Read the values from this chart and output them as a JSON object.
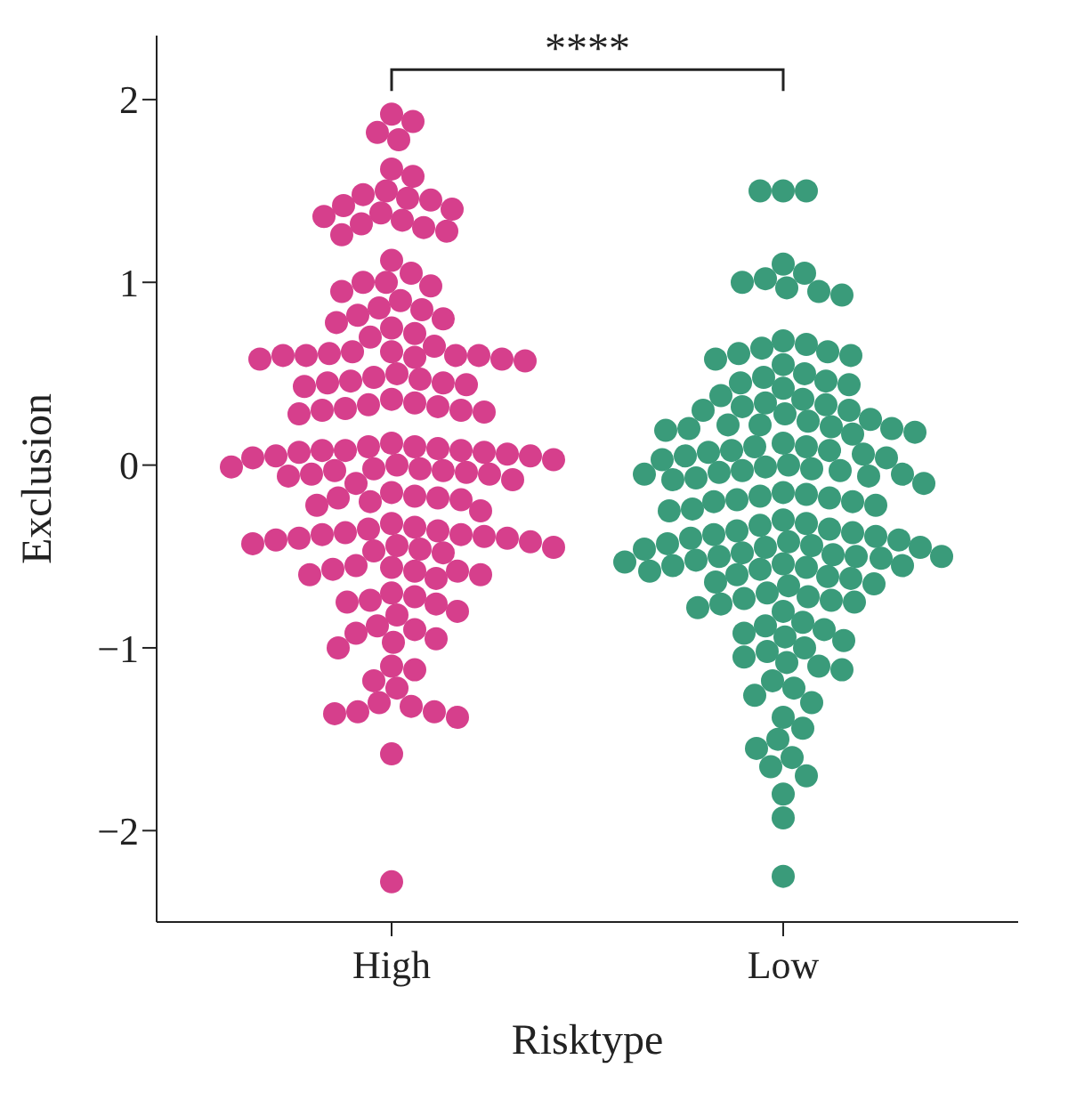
{
  "chart_data": {
    "type": "scatter",
    "xlabel": "Risktype",
    "ylabel": "Exclusion",
    "categories": [
      "High",
      "Low"
    ],
    "ylim": [
      -2.5,
      2.35
    ],
    "yticks": [
      -2,
      -1,
      0,
      1,
      2
    ],
    "grid": false,
    "legend": false,
    "marker": "circle",
    "annotations": [
      "****"
    ],
    "series": [
      {
        "color": "#d63f8c",
        "x": [
          "High",
          "High",
          "High",
          "High",
          "High",
          "High",
          "High",
          "High",
          "High",
          "High",
          "High",
          "High",
          "High",
          "High",
          "High",
          "High",
          "High",
          "High",
          "High",
          "High",
          "High",
          "High",
          "High",
          "High",
          "High",
          "High",
          "High",
          "High",
          "High",
          "High",
          "High",
          "High",
          "High",
          "High",
          "High",
          "High",
          "High",
          "High",
          "High",
          "High",
          "High",
          "High",
          "High",
          "High",
          "High",
          "High",
          "High",
          "High",
          "High",
          "High",
          "High",
          "High",
          "High",
          "High",
          "High",
          "High",
          "High",
          "High",
          "High",
          "High",
          "High",
          "High",
          "High",
          "High",
          "High",
          "High",
          "High",
          "High",
          "High",
          "High",
          "High",
          "High",
          "High",
          "High",
          "High",
          "High",
          "High",
          "High",
          "High",
          "High",
          "High",
          "High",
          "High",
          "High",
          "High",
          "High",
          "High",
          "High",
          "High",
          "High",
          "High",
          "High",
          "High",
          "High",
          "High",
          "High",
          "High",
          "High",
          "High",
          "High",
          "High",
          "High",
          "High",
          "High",
          "High",
          "High",
          "High",
          "High",
          "High",
          "High",
          "High",
          "High",
          "High",
          "High",
          "High",
          "High",
          "High",
          "High",
          "High",
          "High",
          "High",
          "High",
          "High",
          "High",
          "High",
          "High",
          "High",
          "High",
          "High",
          "High",
          "High",
          "High",
          "High",
          "High",
          "High",
          "High",
          "High",
          "High",
          "High",
          "High",
          "High",
          "High",
          "High",
          "High",
          "High",
          "High",
          "High",
          "High"
        ],
        "values": [
          1.92,
          1.88,
          1.82,
          1.78,
          1.62,
          1.58,
          1.5,
          1.48,
          1.46,
          1.45,
          1.42,
          1.4,
          1.38,
          1.36,
          1.34,
          1.32,
          1.3,
          1.28,
          1.26,
          1.12,
          1.05,
          1.0,
          1.0,
          0.98,
          0.95,
          0.9,
          0.86,
          0.85,
          0.82,
          0.8,
          0.78,
          0.75,
          0.72,
          0.7,
          0.65,
          0.62,
          0.62,
          0.61,
          0.6,
          0.6,
          0.6,
          0.6,
          0.59,
          0.58,
          0.58,
          0.57,
          0.5,
          0.48,
          0.47,
          0.46,
          0.45,
          0.45,
          0.44,
          0.43,
          0.36,
          0.34,
          0.33,
          0.32,
          0.31,
          0.3,
          0.3,
          0.29,
          0.28,
          0.12,
          0.1,
          0.1,
          0.09,
          0.08,
          0.08,
          0.08,
          0.07,
          0.07,
          0.06,
          0.05,
          0.05,
          0.04,
          0.03,
          0.0,
          -0.01,
          -0.02,
          -0.02,
          -0.03,
          -0.03,
          -0.04,
          -0.05,
          -0.05,
          -0.06,
          -0.08,
          -0.1,
          -0.15,
          -0.17,
          -0.18,
          -0.18,
          -0.19,
          -0.2,
          -0.22,
          -0.25,
          -0.32,
          -0.34,
          -0.35,
          -0.36,
          -0.37,
          -0.38,
          -0.38,
          -0.39,
          -0.4,
          -0.4,
          -0.41,
          -0.42,
          -0.43,
          -0.44,
          -0.45,
          -0.46,
          -0.47,
          -0.48,
          -0.55,
          -0.56,
          -0.57,
          -0.58,
          -0.58,
          -0.6,
          -0.6,
          -0.62,
          -0.7,
          -0.72,
          -0.74,
          -0.75,
          -0.76,
          -0.8,
          -0.82,
          -0.88,
          -0.9,
          -0.92,
          -0.95,
          -0.97,
          -1.0,
          -1.1,
          -1.12,
          -1.18,
          -1.22,
          -1.3,
          -1.32,
          -1.35,
          -1.35,
          -1.36,
          -1.38,
          -1.58,
          -2.28
        ]
      },
      {
        "color": "#3a9b7a",
        "x": [
          "Low",
          "Low",
          "Low",
          "Low",
          "Low",
          "Low",
          "Low",
          "Low",
          "Low",
          "Low",
          "Low",
          "Low",
          "Low",
          "Low",
          "Low",
          "Low",
          "Low",
          "Low",
          "Low",
          "Low",
          "Low",
          "Low",
          "Low",
          "Low",
          "Low",
          "Low",
          "Low",
          "Low",
          "Low",
          "Low",
          "Low",
          "Low",
          "Low",
          "Low",
          "Low",
          "Low",
          "Low",
          "Low",
          "Low",
          "Low",
          "Low",
          "Low",
          "Low",
          "Low",
          "Low",
          "Low",
          "Low",
          "Low",
          "Low",
          "Low",
          "Low",
          "Low",
          "Low",
          "Low",
          "Low",
          "Low",
          "Low",
          "Low",
          "Low",
          "Low",
          "Low",
          "Low",
          "Low",
          "Low",
          "Low",
          "Low",
          "Low",
          "Low",
          "Low",
          "Low",
          "Low",
          "Low",
          "Low",
          "Low",
          "Low",
          "Low",
          "Low",
          "Low",
          "Low",
          "Low",
          "Low",
          "Low",
          "Low",
          "Low",
          "Low",
          "Low",
          "Low",
          "Low",
          "Low",
          "Low",
          "Low",
          "Low",
          "Low",
          "Low",
          "Low",
          "Low",
          "Low",
          "Low",
          "Low",
          "Low",
          "Low",
          "Low",
          "Low",
          "Low",
          "Low",
          "Low",
          "Low",
          "Low",
          "Low",
          "Low",
          "Low",
          "Low",
          "Low",
          "Low",
          "Low",
          "Low",
          "Low",
          "Low",
          "Low",
          "Low",
          "Low",
          "Low",
          "Low",
          "Low",
          "Low",
          "Low",
          "Low",
          "Low",
          "Low",
          "Low",
          "Low",
          "Low",
          "Low",
          "Low",
          "Low",
          "Low",
          "Low",
          "Low",
          "Low",
          "Low",
          "Low",
          "Low",
          "Low",
          "Low"
        ],
        "values": [
          1.5,
          1.5,
          1.5,
          1.1,
          1.05,
          1.02,
          1.0,
          0.97,
          0.95,
          0.93,
          0.68,
          0.66,
          0.64,
          0.62,
          0.61,
          0.6,
          0.58,
          0.55,
          0.5,
          0.48,
          0.46,
          0.45,
          0.44,
          0.42,
          0.38,
          0.36,
          0.34,
          0.33,
          0.32,
          0.3,
          0.3,
          0.28,
          0.25,
          0.24,
          0.22,
          0.22,
          0.21,
          0.2,
          0.2,
          0.19,
          0.18,
          0.17,
          0.12,
          0.1,
          0.1,
          0.08,
          0.08,
          0.07,
          0.06,
          0.05,
          0.04,
          0.03,
          0.0,
          -0.01,
          -0.02,
          -0.03,
          -0.03,
          -0.04,
          -0.05,
          -0.05,
          -0.06,
          -0.07,
          -0.08,
          -0.1,
          -0.15,
          -0.16,
          -0.17,
          -0.18,
          -0.19,
          -0.2,
          -0.2,
          -0.22,
          -0.24,
          -0.25,
          -0.3,
          -0.32,
          -0.33,
          -0.35,
          -0.36,
          -0.37,
          -0.38,
          -0.39,
          -0.4,
          -0.41,
          -0.42,
          -0.43,
          -0.44,
          -0.45,
          -0.45,
          -0.46,
          -0.48,
          -0.49,
          -0.5,
          -0.5,
          -0.5,
          -0.51,
          -0.52,
          -0.53,
          -0.54,
          -0.55,
          -0.55,
          -0.56,
          -0.57,
          -0.58,
          -0.6,
          -0.61,
          -0.62,
          -0.64,
          -0.65,
          -0.66,
          -0.7,
          -0.72,
          -0.73,
          -0.74,
          -0.75,
          -0.76,
          -0.78,
          -0.8,
          -0.86,
          -0.88,
          -0.9,
          -0.92,
          -0.94,
          -0.96,
          -1.0,
          -1.02,
          -1.05,
          -1.08,
          -1.1,
          -1.12,
          -1.18,
          -1.22,
          -1.26,
          -1.3,
          -1.38,
          -1.44,
          -1.5,
          -1.55,
          -1.6,
          -1.65,
          -1.7,
          -1.8,
          -1.93,
          -2.25
        ]
      }
    ]
  }
}
